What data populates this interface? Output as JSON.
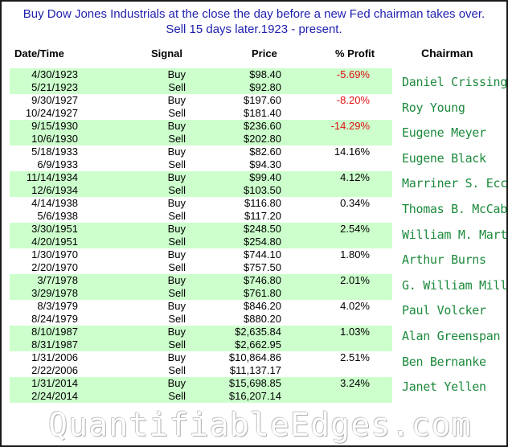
{
  "title_line1": "Buy Dow Jones Industrials at the close the day before a new Fed chairman takes over.",
  "title_line2": "Sell 15 days later.1923 - present.",
  "headers": {
    "date": "Date/Time",
    "signal": "Signal",
    "price": "Price",
    "profit": "% Profit",
    "chairman": "Chairman"
  },
  "rows": [
    {
      "buy_date": "4/30/1923",
      "sell_date": "5/21/1923",
      "buy_price": "$98.40",
      "sell_price": "$92.80",
      "profit": "-5.69%",
      "negative": true
    },
    {
      "buy_date": "9/30/1927",
      "sell_date": "10/24/1927",
      "buy_price": "$197.60",
      "sell_price": "$181.40",
      "profit": "-8.20%",
      "negative": true
    },
    {
      "buy_date": "9/15/1930",
      "sell_date": "10/6/1930",
      "buy_price": "$236.60",
      "sell_price": "$202.80",
      "profit": "-14.29%",
      "negative": true
    },
    {
      "buy_date": "5/18/1933",
      "sell_date": "6/9/1933",
      "buy_price": "$82.60",
      "sell_price": "$94.30",
      "profit": "14.16%",
      "negative": false
    },
    {
      "buy_date": "11/14/1934",
      "sell_date": "12/6/1934",
      "buy_price": "$99.40",
      "sell_price": "$103.50",
      "profit": "4.12%",
      "negative": false
    },
    {
      "buy_date": "4/14/1938",
      "sell_date": "5/6/1938",
      "buy_price": "$116.80",
      "sell_price": "$117.20",
      "profit": "0.34%",
      "negative": false
    },
    {
      "buy_date": "3/30/1951",
      "sell_date": "4/20/1951",
      "buy_price": "$248.50",
      "sell_price": "$254.80",
      "profit": "2.54%",
      "negative": false
    },
    {
      "buy_date": "1/30/1970",
      "sell_date": "2/20/1970",
      "buy_price": "$744.10",
      "sell_price": "$757.50",
      "profit": "1.80%",
      "negative": false
    },
    {
      "buy_date": "3/7/1978",
      "sell_date": "3/29/1978",
      "buy_price": "$746.80",
      "sell_price": "$761.80",
      "profit": "2.01%",
      "negative": false
    },
    {
      "buy_date": "8/3/1979",
      "sell_date": "8/24/1979",
      "buy_price": "$846.20",
      "sell_price": "$880.20",
      "profit": "4.02%",
      "negative": false
    },
    {
      "buy_date": "8/10/1987",
      "sell_date": "8/31/1987",
      "buy_price": "$2,635.84",
      "sell_price": "$2,662.95",
      "profit": "1.03%",
      "negative": false
    },
    {
      "buy_date": "1/31/2006",
      "sell_date": "2/22/2006",
      "buy_price": "$10,864.86",
      "sell_price": "$11,137.17",
      "profit": "2.51%",
      "negative": false
    },
    {
      "buy_date": "1/31/2014",
      "sell_date": "2/24/2014",
      "buy_price": "$15,698.85",
      "sell_price": "$16,207.14",
      "profit": "3.24%",
      "negative": false
    }
  ],
  "signal_buy": "Buy",
  "signal_sell": "Sell",
  "chairmen": [
    "Daniel Crissinger",
    "Roy Young",
    "Eugene Meyer",
    "Eugene Black",
    "Marriner S. Eccles",
    "Thomas B. McCabe",
    "William M. Martin",
    "Arthur Burns",
    "G. William Miller",
    "Paul Volcker",
    "Alan Greenspan",
    "Ben Bernanke",
    "Janet Yellen"
  ],
  "watermark": "QuantifiableEdges.com",
  "colors": {
    "title": "#1f1fb0",
    "row_shade": "#ccffcc",
    "negative": "#e01010",
    "chairman": "#1c8a3c"
  }
}
